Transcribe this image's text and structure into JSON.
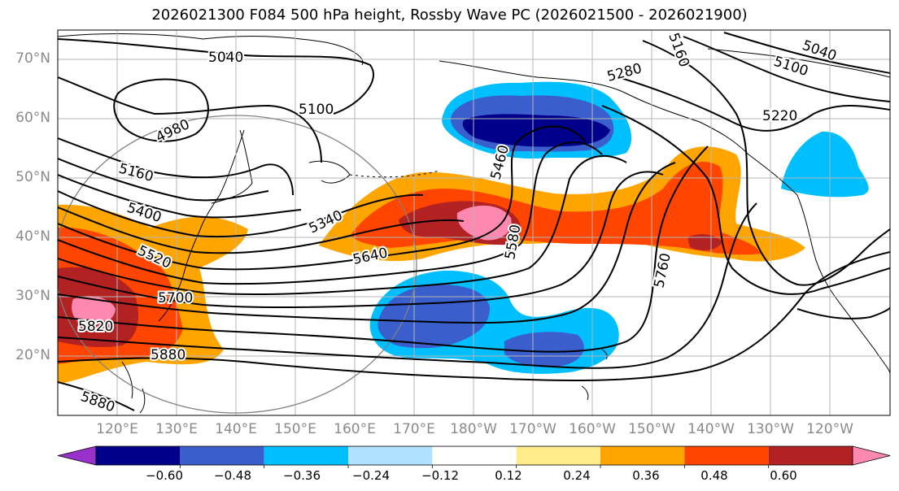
{
  "title": "2026021300 F084 500 hPa height, Rossby Wave PC (2026021500 - 2026021900)",
  "latitude_labels": [
    "70°N",
    "60°N",
    "50°N",
    "40°N",
    "30°N",
    "20°N"
  ],
  "longitude_labels": [
    "120°E",
    "130°E",
    "140°E",
    "150°E",
    "160°E",
    "170°E",
    "180°W",
    "170°W",
    "160°W",
    "150°W",
    "140°W",
    "130°W",
    "120°W"
  ],
  "height_contour_labels": [
    "5040",
    "4980",
    "5100",
    "5160",
    "5400",
    "5520",
    "5700",
    "5820",
    "5880",
    "5880",
    "5340",
    "5640",
    "5460",
    "5580",
    "5760",
    "5280",
    "5160",
    "5220",
    "5100",
    "5040"
  ],
  "colorbar": {
    "ticks": [
      "−0.60",
      "−0.48",
      "−0.36",
      "−0.24",
      "−0.12",
      "0.12",
      "0.24",
      "0.36",
      "0.48",
      "0.60"
    ],
    "colors": [
      "#9932cc",
      "#00008b",
      "#3a5fcd",
      "#00bfff",
      "#b0e2ff",
      "#ffffff",
      "#ffeb8a",
      "#ffa500",
      "#ff4500",
      "#b22222",
      "#ff88b0"
    ]
  }
}
